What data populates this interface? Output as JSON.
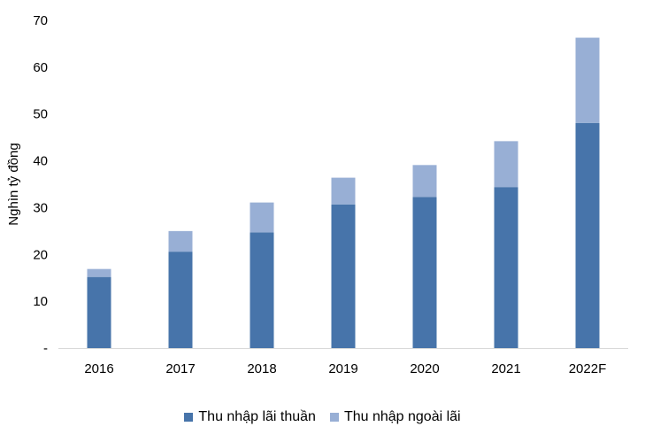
{
  "chart_data": {
    "type": "bar",
    "stacked": true,
    "categories": [
      "2016",
      "2017",
      "2018",
      "2019",
      "2020",
      "2021",
      "2022F"
    ],
    "series": [
      {
        "name": "Thu nhập lãi thuần",
        "values": [
          15.2,
          20.6,
          24.7,
          30.7,
          32.3,
          34.4,
          48.1
        ],
        "color": "#4774aa"
      },
      {
        "name": "Thu nhập ngoài lãi",
        "values": [
          1.7,
          4.4,
          6.4,
          5.7,
          6.8,
          9.8,
          18.2
        ],
        "color": "#98afd5"
      }
    ],
    "title": "",
    "xlabel": "",
    "ylabel": "Nghìn tỷ đồng",
    "ylim": [
      0,
      70
    ],
    "yticks": [
      "-",
      "10",
      "20",
      "30",
      "40",
      "50",
      "60",
      "70"
    ],
    "grid": false,
    "legend_position": "bottom"
  }
}
